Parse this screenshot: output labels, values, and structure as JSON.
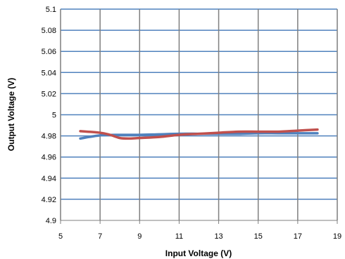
{
  "chart_data": {
    "type": "line",
    "title": "",
    "xlabel": "Input Voltage (V)",
    "ylabel": "Output Voltage (V)",
    "xlim": [
      5,
      19
    ],
    "ylim": [
      4.9,
      5.1
    ],
    "x_ticks": [
      "5",
      "7",
      "9",
      "11",
      "13",
      "15",
      "17",
      "19"
    ],
    "y_ticks": [
      "5.1",
      "5.08",
      "5.06",
      "5.04",
      "5.02",
      "5",
      "4.98",
      "4.96",
      "4.94",
      "4.92",
      "4.9"
    ],
    "grid": true,
    "legend": "none",
    "series": [
      {
        "color": "#4f81bd",
        "x": [
          6,
          7,
          8,
          9,
          10,
          11,
          12,
          13,
          14,
          15,
          16,
          17,
          18
        ],
        "y": [
          4.9775,
          4.9805,
          4.981,
          4.981,
          4.9815,
          4.982,
          4.982,
          4.982,
          4.982,
          4.9825,
          4.9825,
          4.9825,
          4.9825
        ]
      },
      {
        "color": "#c0504d",
        "x": [
          6,
          7,
          7.5,
          8,
          8.5,
          9,
          10,
          11,
          12,
          13,
          14,
          15,
          16,
          17,
          18
        ],
        "y": [
          4.9845,
          4.983,
          4.981,
          4.978,
          4.9775,
          4.978,
          4.979,
          4.981,
          4.982,
          4.983,
          4.984,
          4.984,
          4.984,
          4.985,
          4.986
        ]
      }
    ]
  }
}
